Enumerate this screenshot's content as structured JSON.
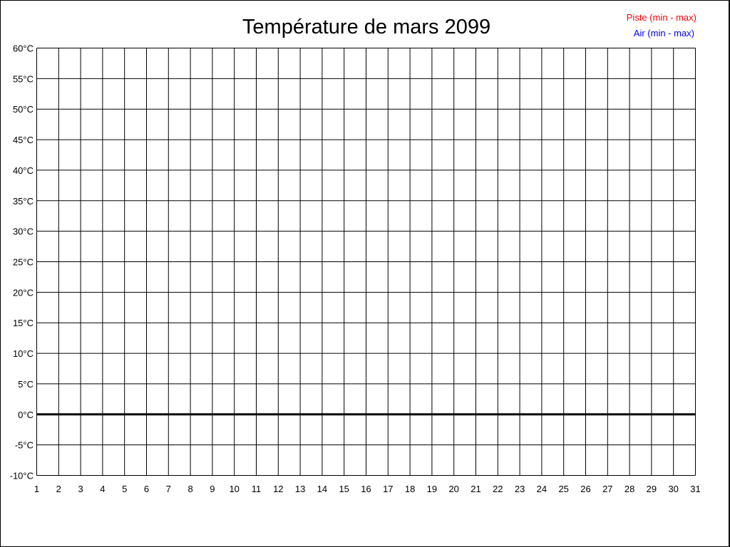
{
  "chart_data": {
    "type": "line",
    "title": "Température de mars 2099",
    "xlabel": "",
    "ylabel": "",
    "x_ticks": [
      "1",
      "2",
      "3",
      "4",
      "5",
      "6",
      "7",
      "8",
      "9",
      "10",
      "11",
      "12",
      "13",
      "14",
      "15",
      "16",
      "17",
      "18",
      "19",
      "20",
      "21",
      "22",
      "23",
      "24",
      "25",
      "26",
      "27",
      "28",
      "29",
      "30",
      "31"
    ],
    "y_ticks": [
      "-10°C",
      "-5°C",
      "0°C",
      "5°C",
      "10°C",
      "15°C",
      "20°C",
      "25°C",
      "30°C",
      "35°C",
      "40°C",
      "45°C",
      "50°C",
      "55°C",
      "60°C"
    ],
    "xlim": [
      1,
      31
    ],
    "ylim": [
      -10,
      60
    ],
    "grid": true,
    "legend_position": "top-right",
    "series": [
      {
        "name": "Piste (min - max)",
        "color": "#ff0000",
        "values": []
      },
      {
        "name": "Air (min - max)",
        "color": "#0000ff",
        "values": []
      }
    ]
  }
}
